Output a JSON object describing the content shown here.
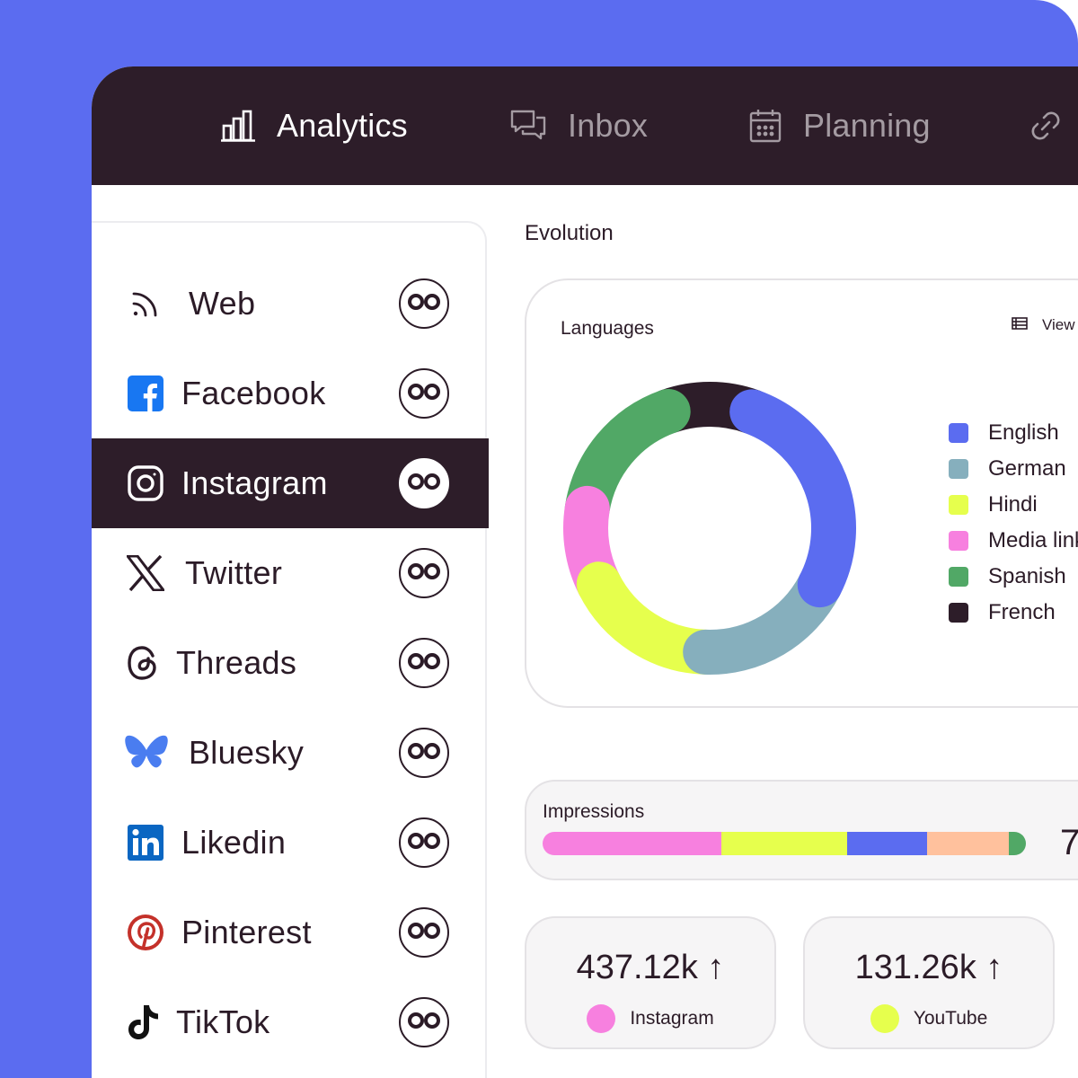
{
  "colors": {
    "frame": "#5b6cf0",
    "nav_background": "#2d1d29",
    "selected_row": "#2d1d29"
  },
  "nav": {
    "items": [
      {
        "label": "Analytics",
        "icon": "bar-chart-icon",
        "active": true
      },
      {
        "label": "Inbox",
        "icon": "chat-bubbles-icon",
        "active": false
      },
      {
        "label": "Planning",
        "icon": "calendar-icon",
        "active": false
      },
      {
        "label": "",
        "icon": "link-icon",
        "active": false
      }
    ]
  },
  "sidebar": {
    "channels": [
      {
        "label": "Web",
        "icon": "rss-icon",
        "selected": false
      },
      {
        "label": "Facebook",
        "icon": "facebook-icon",
        "selected": false
      },
      {
        "label": "Instagram",
        "icon": "instagram-icon",
        "selected": true
      },
      {
        "label": "Twitter",
        "icon": "x-icon",
        "selected": false
      },
      {
        "label": "Threads",
        "icon": "threads-icon",
        "selected": false
      },
      {
        "label": "Bluesky",
        "icon": "bluesky-icon",
        "selected": false
      },
      {
        "label": "Likedin",
        "icon": "linkedin-icon",
        "selected": false
      },
      {
        "label": "Pinterest",
        "icon": "pinterest-icon",
        "selected": false
      },
      {
        "label": "TikTok",
        "icon": "tiktok-icon",
        "selected": false
      }
    ],
    "link_icon": "infinity-link-icon"
  },
  "main": {
    "section_title": "Evolution",
    "languages_card": {
      "title": "Languages",
      "view_label": "View",
      "view_icon": "table-icon"
    },
    "impressions": {
      "title": "Impressions",
      "total": "7"
    },
    "stats": [
      {
        "value": "437.12k",
        "trend": "↑",
        "label": "Instagram",
        "color": "#f780df"
      },
      {
        "value": "131.26k",
        "trend": "↑",
        "label": "YouTube",
        "color": "#e6ff4d"
      }
    ]
  },
  "chart_data": [
    {
      "type": "pie",
      "title": "Languages",
      "categories": [
        "English",
        "German",
        "Hindi",
        "Media link",
        "Spanish",
        "French"
      ],
      "legend_labels": [
        "English",
        "German",
        "Hindi",
        "Media link",
        "Spanish",
        "French"
      ],
      "values": [
        27,
        18,
        17,
        10,
        17,
        11
      ],
      "colors": [
        "#5b6cf0",
        "#86afbd",
        "#e6ff4d",
        "#f780df",
        "#51a866",
        "#2d1d29"
      ],
      "legend_position": "right",
      "donut": true
    },
    {
      "type": "bar",
      "title": "Impressions",
      "stacked": true,
      "orientation": "horizontal",
      "values": [
        37,
        26,
        16.5,
        17,
        3.5
      ],
      "colors": [
        "#f780df",
        "#e6ff4d",
        "#5b6cf0",
        "#ffc19d",
        "#51a866"
      ]
    }
  ]
}
